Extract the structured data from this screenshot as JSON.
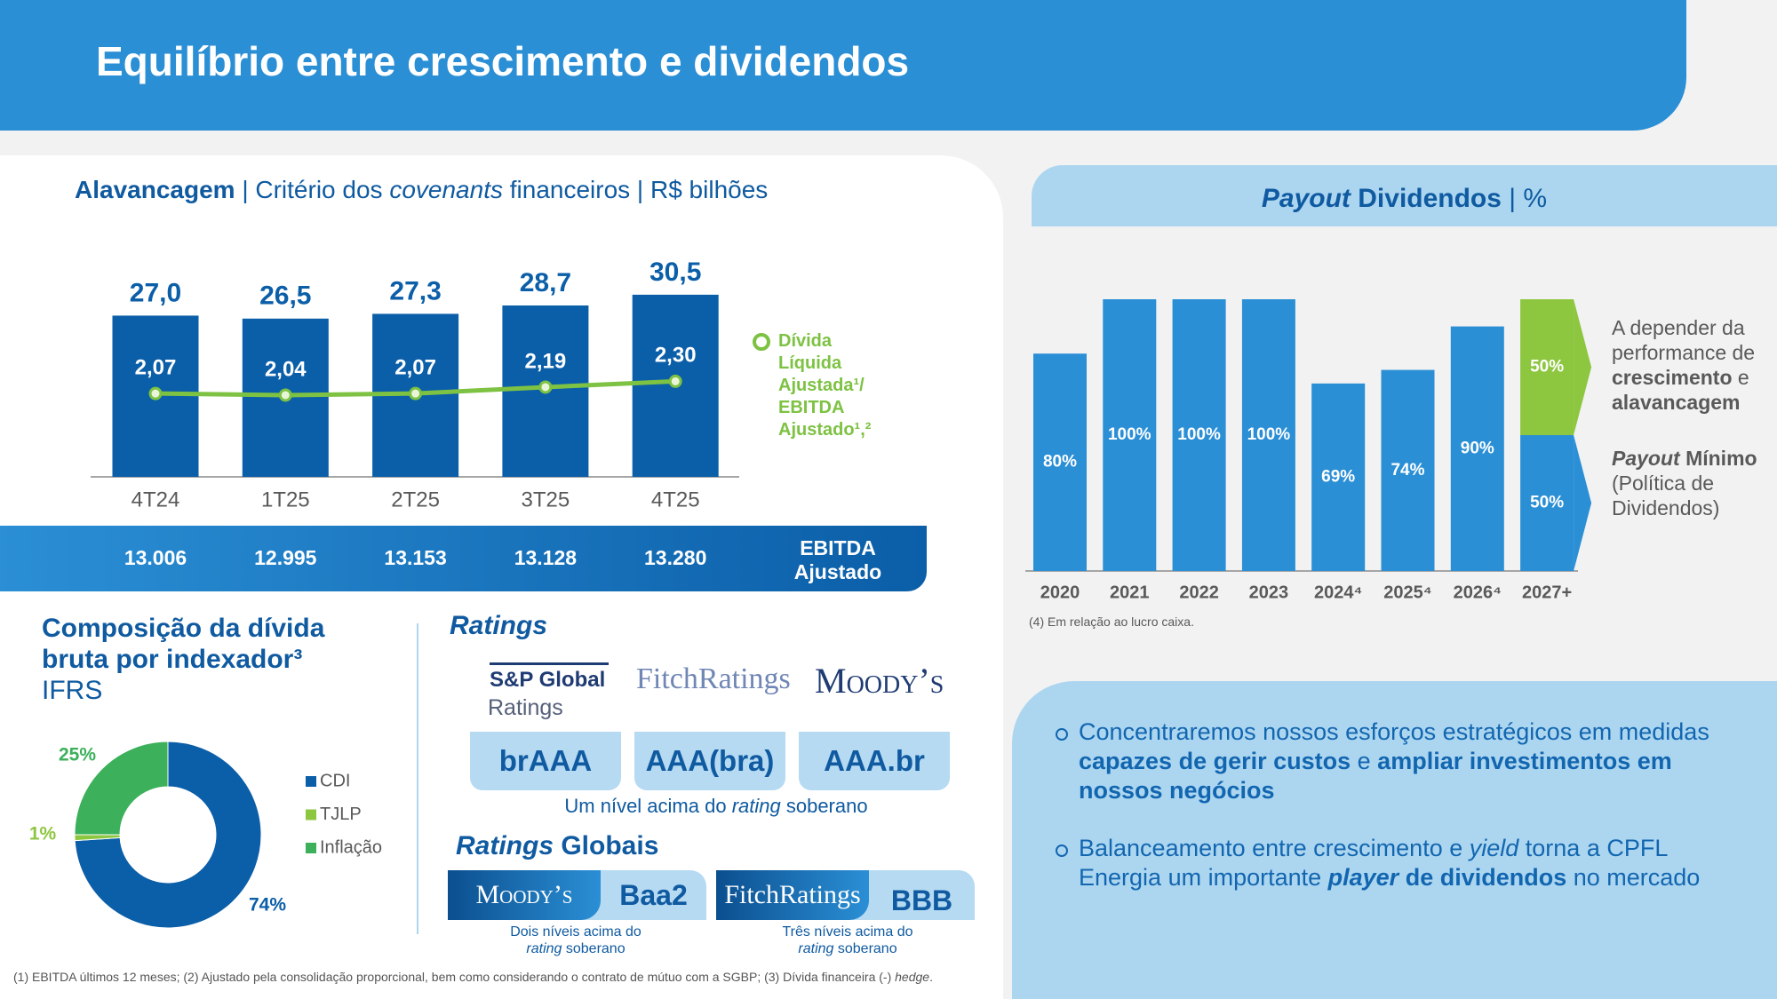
{
  "header": {
    "title": "Equilíbrio entre crescimento e dividendos"
  },
  "chart_data": [
    {
      "type": "bar",
      "title": [
        "Alavancagem",
        " | Critério dos ",
        "covenants",
        " financeiros | R$ bilhões"
      ],
      "categories": [
        "4T24",
        "1T25",
        "2T25",
        "3T25",
        "4T25"
      ],
      "series": [
        {
          "type": "bar",
          "color": "#0b5ea8",
          "values": [
            27.0,
            26.5,
            27.3,
            28.7,
            30.5
          ],
          "value_labels": [
            "27,0",
            "26,5",
            "27,3",
            "28,7",
            "30,5"
          ]
        },
        {
          "type": "line",
          "name": "Dívida Líquida Ajustada¹/ EBITDA Ajustado¹,²",
          "color": "#7dc242",
          "axis": "y2",
          "values": [
            2.07,
            2.04,
            2.07,
            2.19,
            2.3
          ],
          "value_labels": [
            "2,07",
            "2,04",
            "2,07",
            "2,19",
            "2,30"
          ]
        }
      ],
      "ylim": [
        0,
        40
      ],
      "y2lim": [
        0.5,
        5
      ],
      "table_row": {
        "name": "EBITDA Ajustado",
        "cells": [
          "13.006",
          "12.995",
          "13.153",
          "13.128",
          "13.280"
        ]
      }
    },
    {
      "type": "bar",
      "stacked": true,
      "title": [
        "Payout",
        " Dividendos",
        " | %"
      ],
      "categories": [
        "2020",
        "2021",
        "2022",
        "2023",
        "2024⁴",
        "2025⁴",
        "2026⁴",
        "2027+"
      ],
      "series": [
        {
          "color": "#2b8fd6",
          "values": [
            80,
            100,
            100,
            100,
            69,
            74,
            90,
            50
          ],
          "value_labels": [
            "80%",
            "100%",
            "100%",
            "100%",
            "69%",
            "74%",
            "90%",
            "50%"
          ]
        },
        {
          "color": "#8dc63f",
          "values": [
            null,
            null,
            null,
            null,
            null,
            null,
            null,
            50
          ],
          "value_labels": [
            null,
            null,
            null,
            null,
            null,
            null,
            null,
            "50%"
          ]
        }
      ],
      "ylim": [
        0,
        100
      ],
      "annotations": [
        [
          "A depender da performance de ",
          "crescimento",
          " e ",
          "alavancagem"
        ],
        [
          "Payout",
          " Mínimo",
          " (Política de Dividendos)"
        ]
      ],
      "footnote": "(4) Em relação ao lucro caixa."
    },
    {
      "type": "pie",
      "donut": true,
      "title": [
        "Composição da dívida bruta por indexador³",
        "IFRS"
      ],
      "categories": [
        "CDI",
        "TJLP",
        "Inflação"
      ],
      "values": [
        74,
        1,
        25
      ],
      "value_labels": [
        "74%",
        "1%",
        "25%"
      ],
      "colors": [
        "#0b5ea8",
        "#8dc63f",
        "#3cb05a"
      ]
    }
  ],
  "ratings": {
    "title": "Ratings",
    "logos": [
      "S&P Global",
      "Ratings",
      "FitchRatings",
      "Moody’s"
    ],
    "grades": [
      "brAAA",
      "AAA(bra)",
      "AAA.br"
    ],
    "note": [
      "Um nível acima do ",
      "rating",
      " soberano"
    ]
  },
  "global_ratings": {
    "title": [
      "Ratings",
      " Globais"
    ],
    "items": [
      {
        "agency": "Moody’s",
        "grade": "Baa2",
        "note": [
          "Dois níveis acima do",
          "rating",
          " soberano"
        ]
      },
      {
        "agency": "FitchRatings",
        "grade": "BBB",
        "note": [
          "Três níveis acima do",
          "rating",
          " soberano"
        ]
      }
    ]
  },
  "bullets": [
    [
      "Concentraremos nossos esforços estratégicos em medidas ",
      "capazes de gerir custos",
      " e ",
      "ampliar investimentos em nossos negócios"
    ],
    [
      "Balanceamento entre crescimento e ",
      "yield",
      " torna a CPFL Energia um importante ",
      "player",
      " de dividendos",
      " no mercado"
    ]
  ],
  "footnote": [
    "(1) EBITDA últimos 12 meses; (2) Ajustado pela consolidação proporcional, bem como considerando o contrato de mútuo com a SGBP; (3) Dívida financeira (-) ",
    "hedge",
    "."
  ]
}
